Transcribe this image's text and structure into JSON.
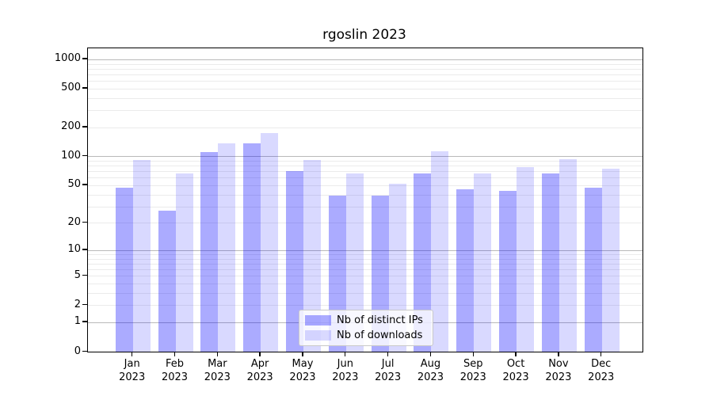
{
  "chart_data": {
    "type": "bar",
    "title": "rgoslin 2023",
    "categories": [
      "Jan",
      "Feb",
      "Mar",
      "Apr",
      "May",
      "Jun",
      "Jul",
      "Aug",
      "Sep",
      "Oct",
      "Nov",
      "Dec"
    ],
    "category_year": "2023",
    "series": [
      {
        "name": "Nb of distinct IPs",
        "color": "rgba(0,0,255,0.33)",
        "values": [
          47,
          27,
          111,
          136,
          70,
          39,
          39,
          66,
          45,
          44,
          67,
          47
        ]
      },
      {
        "name": "Nb of downloads",
        "color": "rgba(0,0,255,0.15)",
        "values": [
          91,
          66,
          136,
          173,
          92,
          66,
          52,
          112,
          66,
          77,
          93,
          75
        ]
      }
    ],
    "yscale": "log1p",
    "yticks": [
      0,
      1,
      2,
      5,
      10,
      20,
      50,
      100,
      200,
      500,
      1000
    ],
    "ylim": [
      0,
      1245
    ],
    "xlabel": "",
    "ylabel": "",
    "grid": "on",
    "legend_position": "lower-center"
  },
  "colors": {
    "grid_major": "#b9b9b9",
    "grid_minor": "#ebebeb",
    "axis": "#000000",
    "background": "#ffffff"
  }
}
